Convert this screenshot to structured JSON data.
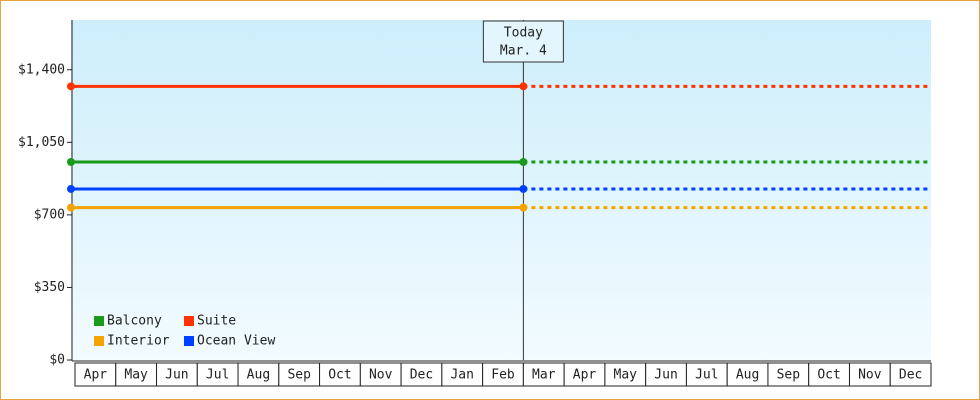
{
  "chart_data": {
    "type": "line",
    "categories": [
      "Apr",
      "May",
      "Jun",
      "Jul",
      "Aug",
      "Sep",
      "Oct",
      "Nov",
      "Dec",
      "Jan",
      "Feb",
      "Mar",
      "Apr",
      "May",
      "Jun",
      "Jul",
      "Aug",
      "Sep",
      "Oct",
      "Nov",
      "Dec"
    ],
    "series": [
      {
        "name": "Balcony",
        "color": "#1a9a1a",
        "values": [
          955,
          955,
          955,
          955,
          955,
          955,
          955,
          955,
          955,
          955,
          955,
          955,
          955,
          955,
          955,
          955,
          955,
          955,
          955,
          955,
          955
        ]
      },
      {
        "name": "Suite",
        "color": "#ff3300",
        "values": [
          1320,
          1320,
          1320,
          1320,
          1320,
          1320,
          1320,
          1320,
          1320,
          1320,
          1320,
          1320,
          1320,
          1320,
          1320,
          1320,
          1320,
          1320,
          1320,
          1320,
          1320
        ]
      },
      {
        "name": "Interior",
        "color": "#f5a300",
        "values": [
          735,
          735,
          735,
          735,
          735,
          735,
          735,
          735,
          735,
          735,
          735,
          735,
          735,
          735,
          735,
          735,
          735,
          735,
          735,
          735,
          735
        ]
      },
      {
        "name": "Ocean View",
        "color": "#0040ff",
        "values": [
          825,
          825,
          825,
          825,
          825,
          825,
          825,
          825,
          825,
          825,
          825,
          825,
          825,
          825,
          825,
          825,
          825,
          825,
          825,
          825,
          825
        ]
      }
    ],
    "today_index": 11,
    "annotation": {
      "title": "Today",
      "date": "Mar. 4"
    },
    "ylim": [
      0,
      1640
    ],
    "yticks": [
      {
        "value": 0,
        "label": "$0"
      },
      {
        "value": 350,
        "label": "$350"
      },
      {
        "value": 700,
        "label": "$700"
      },
      {
        "value": 1050,
        "label": "$1,050"
      },
      {
        "value": 1400,
        "label": "$1,400"
      }
    ]
  }
}
